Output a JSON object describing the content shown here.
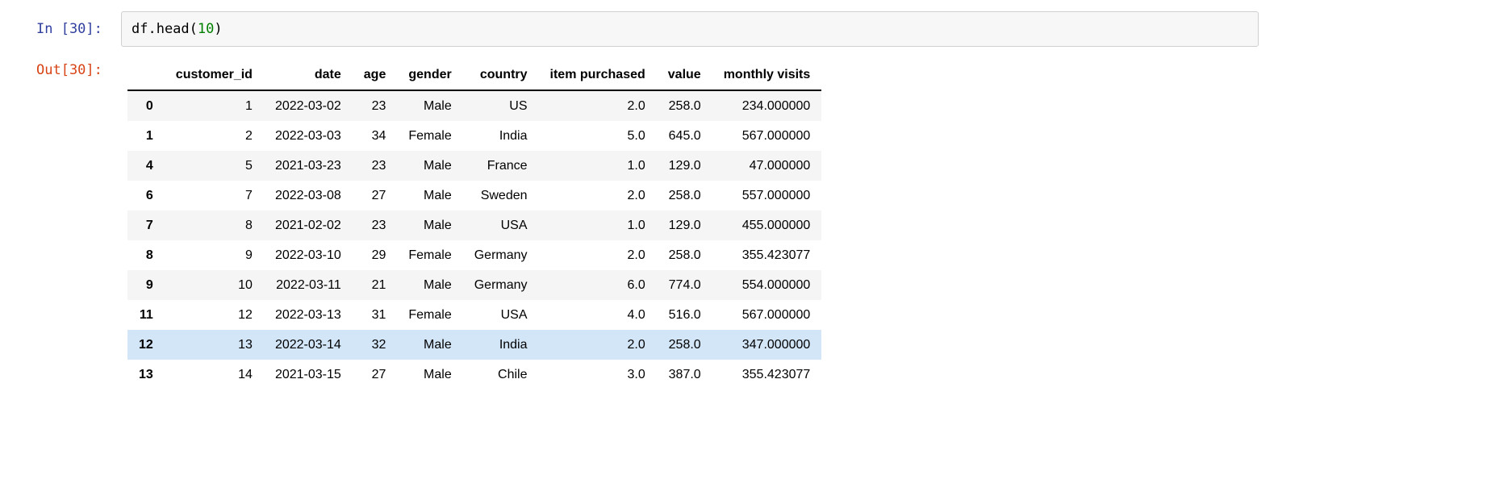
{
  "notebook": {
    "input_prompt": "In [30]:",
    "output_prompt": "Out[30]:",
    "code_tokens": [
      {
        "text": "df.head(",
        "type": "plain"
      },
      {
        "text": "10",
        "type": "number"
      },
      {
        "text": ")",
        "type": "plain"
      }
    ]
  },
  "table": {
    "index_header": "",
    "headers": [
      "customer_id",
      "date",
      "age",
      "gender",
      "country",
      "item purchased",
      "value",
      "monthly visits"
    ],
    "rows": [
      {
        "index": "0",
        "cells": [
          "1",
          "2022-03-02",
          "23",
          "Male",
          "US",
          "2.0",
          "258.0",
          "234.000000"
        ]
      },
      {
        "index": "1",
        "cells": [
          "2",
          "2022-03-03",
          "34",
          "Female",
          "India",
          "5.0",
          "645.0",
          "567.000000"
        ]
      },
      {
        "index": "4",
        "cells": [
          "5",
          "2021-03-23",
          "23",
          "Male",
          "France",
          "1.0",
          "129.0",
          "47.000000"
        ]
      },
      {
        "index": "6",
        "cells": [
          "7",
          "2022-03-08",
          "27",
          "Male",
          "Sweden",
          "2.0",
          "258.0",
          "557.000000"
        ]
      },
      {
        "index": "7",
        "cells": [
          "8",
          "2021-02-02",
          "23",
          "Male",
          "USA",
          "1.0",
          "129.0",
          "455.000000"
        ]
      },
      {
        "index": "8",
        "cells": [
          "9",
          "2022-03-10",
          "29",
          "Female",
          "Germany",
          "2.0",
          "258.0",
          "355.423077"
        ]
      },
      {
        "index": "9",
        "cells": [
          "10",
          "2022-03-11",
          "21",
          "Male",
          "Germany",
          "6.0",
          "774.0",
          "554.000000"
        ]
      },
      {
        "index": "11",
        "cells": [
          "12",
          "2022-03-13",
          "31",
          "Female",
          "USA",
          "4.0",
          "516.0",
          "567.000000"
        ]
      },
      {
        "index": "12",
        "cells": [
          "13",
          "2022-03-14",
          "32",
          "Male",
          "India",
          "2.0",
          "258.0",
          "347.000000"
        ]
      },
      {
        "index": "13",
        "cells": [
          "14",
          "2021-03-15",
          "27",
          "Male",
          "Chile",
          "3.0",
          "387.0",
          "355.423077"
        ]
      }
    ],
    "highlighted_row_index": 8
  },
  "colors": {
    "input_prompt": "#303F9F",
    "output_prompt": "#D84315",
    "number_token": "#008000",
    "row_stripe": "#f5f5f5",
    "row_highlight": "#d2e6f8",
    "input_bg": "#f7f7f7",
    "input_border": "#cfcfcf"
  }
}
